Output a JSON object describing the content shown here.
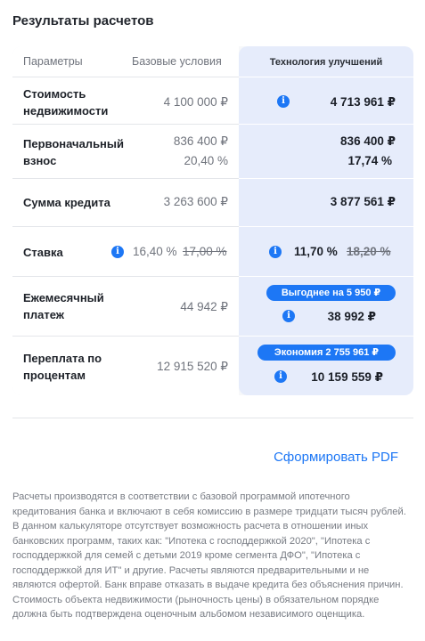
{
  "title": "Результаты расчетов",
  "header": {
    "params": "Параметры",
    "base": "Базовые условия",
    "tech": "Технология улучшений"
  },
  "rows": {
    "property": {
      "label_1": "Стоимость",
      "label_2": "недвижимости",
      "base": "4 100 000 ₽",
      "tech": "4 713 961 ₽"
    },
    "downpayment": {
      "label_1": "Первоначальный",
      "label_2": "взнос",
      "base_amount": "836 400 ₽",
      "base_percent": "20,40 %",
      "tech_amount": "836 400 ₽",
      "tech_percent": "17,74 %"
    },
    "loan": {
      "label": "Сумма кредита",
      "base": "3 263 600 ₽",
      "tech": "3 877 561 ₽"
    },
    "rate": {
      "label": "Ставка",
      "base": "16,40 %",
      "base_old": "17,00 %",
      "tech": "11,70 %",
      "tech_old": "18,20 %"
    },
    "monthly": {
      "label_1": "Ежемесячный",
      "label_2": "платеж",
      "base": "44 942 ₽",
      "badge": "Выгоднее на 5 950 ₽",
      "tech": "38 992 ₽"
    },
    "overpay": {
      "label_1": "Переплата по",
      "label_2": "процентам",
      "base": "12 915 520 ₽",
      "badge": "Экономия 2 755 961 ₽",
      "tech": "10 159 559 ₽"
    }
  },
  "info_icon_glyph": "i",
  "pdf_link": "Сформировать PDF",
  "disclaimer": "Расчеты производятся в соответствии с базовой программой ипотечного кредитования банка и включают в себя комиссию в размере тридцати тысяч рублей. В данном калькуляторе отсутствует возможность расчета в отношении иных банковских программ, таких как: \"Ипотека с господдержкой 2020\", \"Ипотека с господдержкой для семей с детьми 2019 кроме сегмента ДФО\", \"Ипотека с господдержкой для ИТ\" и другие. Расчеты являются предварительными и не являются офертой. Банк вправе отказать в выдаче кредита без объяснения причин. Стоимость объекта недвижимости (рыночность цены) в обязательном порядке должна быть подтверждена оценочным альбомом независимого оценщика.",
  "colors": {
    "accent": "#1d77f5",
    "highlight_panel": "#e6ecfb",
    "muted_text": "#70747d"
  }
}
